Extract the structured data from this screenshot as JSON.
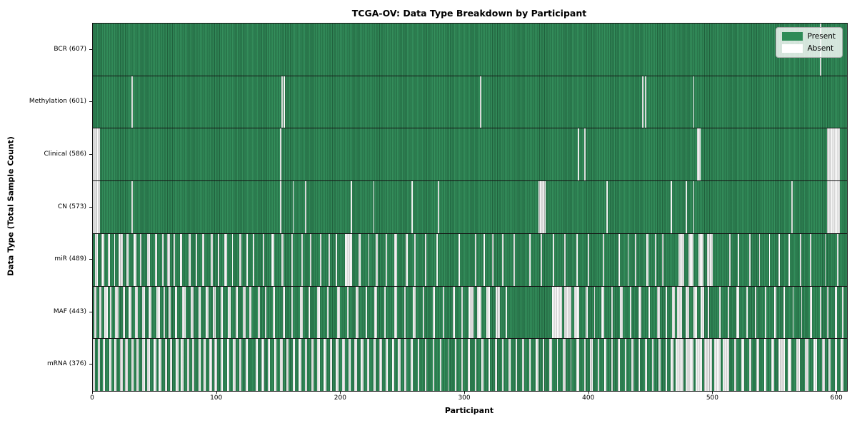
{
  "figure": {
    "title": "TCGA-OV: Data Type Breakdown by Participant",
    "xlabel": "Participant",
    "ylabel": "Data Type (Total Sample Count)"
  },
  "legend": {
    "present_label": "Present",
    "absent_label": "Absent"
  },
  "colors": {
    "present": "#2e8b57",
    "absent": "#ffffff",
    "bar_edge": "rgba(0,0,0,0.30)",
    "legend_bg": "rgba(255,255,255,0.8)",
    "legend_border": "#b0b0b0",
    "axis": "#141414"
  },
  "axis": {
    "x_ticks": [
      0,
      100,
      200,
      300,
      400,
      500,
      600
    ],
    "x_max": 608
  },
  "chart_data": {
    "type": "heatmap",
    "title": "TCGA-OV: Data Type Breakdown by Participant",
    "xlabel": "Participant",
    "ylabel": "Data Type (Total Sample Count)",
    "x_range": [
      0,
      608
    ],
    "legend": [
      "Present",
      "Absent"
    ],
    "legend_position": "upper right",
    "value_encoding": {
      "present": "#2e8b57",
      "absent": "#ffffff"
    },
    "total_participants": 608,
    "rows": [
      {
        "data_type": "BCR",
        "label": "BCR (607)",
        "present_count": 607,
        "absent_count": 1,
        "absent_intervals": [
          [
            586,
            587
          ]
        ]
      },
      {
        "data_type": "Methylation",
        "label": "Methylation (601)",
        "present_count": 601,
        "absent_count": 7,
        "absent_intervals": [
          [
            31,
            32
          ],
          [
            152,
            153
          ],
          [
            154,
            155
          ],
          [
            312,
            313
          ],
          [
            443,
            444
          ],
          [
            445,
            446
          ],
          [
            484,
            485
          ]
        ]
      },
      {
        "data_type": "Clinical",
        "label": "Clinical (586)",
        "present_count": 586,
        "absent_count": 22,
        "absent_intervals": [
          [
            0,
            6
          ],
          [
            151,
            152
          ],
          [
            391,
            392
          ],
          [
            396,
            397
          ],
          [
            487,
            490
          ],
          [
            592,
            602
          ]
        ]
      },
      {
        "data_type": "CN",
        "label": "CN (573)",
        "present_count": 573,
        "absent_count": 35,
        "absent_intervals": [
          [
            0,
            6
          ],
          [
            31,
            32
          ],
          [
            151,
            152
          ],
          [
            161,
            162
          ],
          [
            171,
            172
          ],
          [
            208,
            209
          ],
          [
            226,
            227
          ],
          [
            257,
            258
          ],
          [
            278,
            279
          ],
          [
            359,
            365
          ],
          [
            414,
            415
          ],
          [
            466,
            467
          ],
          [
            478,
            479
          ],
          [
            484,
            485
          ],
          [
            563,
            564
          ],
          [
            592,
            602
          ]
        ]
      },
      {
        "data_type": "miR",
        "label": "miR (489)",
        "present_count": 489,
        "absent_count": 119,
        "absent_intervals": [
          [
            2,
            4
          ],
          [
            7,
            9
          ],
          [
            12,
            14
          ],
          [
            17,
            18
          ],
          [
            21,
            24
          ],
          [
            27,
            29
          ],
          [
            33,
            35
          ],
          [
            38,
            39
          ],
          [
            44,
            46
          ],
          [
            50,
            52
          ],
          [
            56,
            57
          ],
          [
            60,
            62
          ],
          [
            65,
            66
          ],
          [
            70,
            72
          ],
          [
            77,
            79
          ],
          [
            83,
            84
          ],
          [
            88,
            90
          ],
          [
            95,
            97
          ],
          [
            101,
            102
          ],
          [
            106,
            108
          ],
          [
            112,
            113
          ],
          [
            118,
            120
          ],
          [
            124,
            125
          ],
          [
            129,
            130
          ],
          [
            137,
            138
          ],
          [
            144,
            146
          ],
          [
            152,
            154
          ],
          [
            160,
            161
          ],
          [
            168,
            169
          ],
          [
            175,
            176
          ],
          [
            183,
            184
          ],
          [
            190,
            191
          ],
          [
            196,
            197
          ],
          [
            203,
            209
          ],
          [
            214,
            216
          ],
          [
            222,
            223
          ],
          [
            228,
            230
          ],
          [
            236,
            237
          ],
          [
            243,
            245
          ],
          [
            252,
            254
          ],
          [
            259,
            260
          ],
          [
            268,
            269
          ],
          [
            277,
            278
          ],
          [
            295,
            296
          ],
          [
            308,
            309
          ],
          [
            315,
            316
          ],
          [
            322,
            323
          ],
          [
            330,
            331
          ],
          [
            339,
            340
          ],
          [
            352,
            353
          ],
          [
            361,
            362
          ],
          [
            371,
            372
          ],
          [
            380,
            381
          ],
          [
            390,
            391
          ],
          [
            399,
            400
          ],
          [
            411,
            412
          ],
          [
            424,
            425
          ],
          [
            431,
            432
          ],
          [
            437,
            438
          ],
          [
            446,
            448
          ],
          [
            453,
            454
          ],
          [
            459,
            460
          ],
          [
            472,
            477
          ],
          [
            480,
            484
          ],
          [
            488,
            492
          ],
          [
            495,
            500
          ],
          [
            513,
            514
          ],
          [
            520,
            521
          ],
          [
            529,
            530
          ],
          [
            537,
            538
          ],
          [
            545,
            546
          ],
          [
            553,
            554
          ],
          [
            561,
            562
          ],
          [
            570,
            571
          ],
          [
            578,
            579
          ],
          [
            590,
            591
          ],
          [
            600,
            601
          ]
        ]
      },
      {
        "data_type": "MAF",
        "label": "MAF (443)",
        "present_count": 443,
        "absent_count": 165,
        "absent_intervals": [
          [
            1,
            3
          ],
          [
            5,
            7
          ],
          [
            9,
            12
          ],
          [
            14,
            15
          ],
          [
            18,
            21
          ],
          [
            24,
            26
          ],
          [
            29,
            31
          ],
          [
            34,
            36
          ],
          [
            40,
            42
          ],
          [
            45,
            47
          ],
          [
            51,
            54
          ],
          [
            57,
            58
          ],
          [
            61,
            63
          ],
          [
            66,
            68
          ],
          [
            72,
            75
          ],
          [
            79,
            81
          ],
          [
            85,
            87
          ],
          [
            91,
            93
          ],
          [
            97,
            99
          ],
          [
            103,
            105
          ],
          [
            109,
            111
          ],
          [
            115,
            117
          ],
          [
            121,
            123
          ],
          [
            126,
            128
          ],
          [
            133,
            135
          ],
          [
            139,
            140
          ],
          [
            145,
            147
          ],
          [
            153,
            155
          ],
          [
            160,
            161
          ],
          [
            167,
            169
          ],
          [
            174,
            175
          ],
          [
            181,
            183
          ],
          [
            189,
            190
          ],
          [
            197,
            199
          ],
          [
            205,
            206
          ],
          [
            212,
            214
          ],
          [
            220,
            221
          ],
          [
            227,
            229
          ],
          [
            235,
            236
          ],
          [
            243,
            245
          ],
          [
            251,
            252
          ],
          [
            258,
            260
          ],
          [
            266,
            267
          ],
          [
            274,
            276
          ],
          [
            282,
            283
          ],
          [
            290,
            292
          ],
          [
            297,
            298
          ],
          [
            303,
            307
          ],
          [
            310,
            313
          ],
          [
            317,
            320
          ],
          [
            325,
            328
          ],
          [
            333,
            334
          ],
          [
            370,
            378
          ],
          [
            380,
            386
          ],
          [
            388,
            392
          ],
          [
            397,
            399
          ],
          [
            404,
            405
          ],
          [
            410,
            412
          ],
          [
            418,
            419
          ],
          [
            425,
            427
          ],
          [
            433,
            434
          ],
          [
            440,
            442
          ],
          [
            448,
            449
          ],
          [
            455,
            457
          ],
          [
            462,
            463
          ],
          [
            467,
            469
          ],
          [
            471,
            475
          ],
          [
            478,
            481
          ],
          [
            484,
            487
          ],
          [
            490,
            493
          ],
          [
            496,
            497
          ],
          [
            505,
            506
          ],
          [
            512,
            513
          ],
          [
            519,
            521
          ],
          [
            527,
            528
          ],
          [
            534,
            535
          ],
          [
            542,
            543
          ],
          [
            549,
            551
          ],
          [
            557,
            558
          ],
          [
            564,
            565
          ],
          [
            571,
            572
          ],
          [
            578,
            580
          ],
          [
            586,
            587
          ],
          [
            592,
            593
          ],
          [
            598,
            600
          ],
          [
            604,
            605
          ]
        ]
      },
      {
        "data_type": "mRNA",
        "label": "mRNA (376)",
        "present_count": 376,
        "absent_count": 232,
        "absent_intervals": [
          [
            0,
            2
          ],
          [
            4,
            6
          ],
          [
            8,
            10
          ],
          [
            13,
            15
          ],
          [
            17,
            19
          ],
          [
            22,
            24
          ],
          [
            26,
            28
          ],
          [
            31,
            33
          ],
          [
            35,
            37
          ],
          [
            40,
            42
          ],
          [
            44,
            46
          ],
          [
            49,
            51
          ],
          [
            53,
            55
          ],
          [
            58,
            60
          ],
          [
            62,
            64
          ],
          [
            67,
            69
          ],
          [
            71,
            73
          ],
          [
            76,
            78
          ],
          [
            80,
            82
          ],
          [
            85,
            87
          ],
          [
            89,
            91
          ],
          [
            94,
            96
          ],
          [
            98,
            100
          ],
          [
            103,
            105
          ],
          [
            108,
            110
          ],
          [
            113,
            115
          ],
          [
            118,
            120
          ],
          [
            123,
            125
          ],
          [
            131,
            133
          ],
          [
            136,
            138
          ],
          [
            141,
            143
          ],
          [
            146,
            148
          ],
          [
            151,
            153
          ],
          [
            156,
            158
          ],
          [
            161,
            163
          ],
          [
            166,
            168
          ],
          [
            171,
            173
          ],
          [
            176,
            178
          ],
          [
            181,
            183
          ],
          [
            186,
            188
          ],
          [
            191,
            193
          ],
          [
            196,
            198
          ],
          [
            201,
            203
          ],
          [
            206,
            208
          ],
          [
            211,
            213
          ],
          [
            216,
            218
          ],
          [
            221,
            223
          ],
          [
            226,
            228
          ],
          [
            231,
            233
          ],
          [
            236,
            238
          ],
          [
            241,
            243
          ],
          [
            246,
            248
          ],
          [
            251,
            253
          ],
          [
            256,
            258
          ],
          [
            262,
            263
          ],
          [
            268,
            269
          ],
          [
            274,
            275
          ],
          [
            280,
            281
          ],
          [
            286,
            287
          ],
          [
            292,
            293
          ],
          [
            297,
            298
          ],
          [
            302,
            304
          ],
          [
            308,
            309
          ],
          [
            313,
            315
          ],
          [
            319,
            320
          ],
          [
            324,
            326
          ],
          [
            330,
            331
          ],
          [
            335,
            337
          ],
          [
            341,
            342
          ],
          [
            346,
            348
          ],
          [
            352,
            353
          ],
          [
            357,
            359
          ],
          [
            363,
            364
          ],
          [
            368,
            370
          ],
          [
            374,
            375
          ],
          [
            379,
            381
          ],
          [
            385,
            386
          ],
          [
            390,
            392
          ],
          [
            396,
            397
          ],
          [
            401,
            403
          ],
          [
            407,
            408
          ],
          [
            412,
            414
          ],
          [
            418,
            419
          ],
          [
            423,
            425
          ],
          [
            429,
            430
          ],
          [
            434,
            436
          ],
          [
            440,
            441
          ],
          [
            445,
            447
          ],
          [
            451,
            452
          ],
          [
            456,
            458
          ],
          [
            462,
            463
          ],
          [
            466,
            468
          ],
          [
            470,
            476
          ],
          [
            478,
            484
          ],
          [
            486,
            491
          ],
          [
            493,
            499
          ],
          [
            501,
            506
          ],
          [
            508,
            513
          ],
          [
            517,
            519
          ],
          [
            523,
            525
          ],
          [
            529,
            531
          ],
          [
            535,
            537
          ],
          [
            541,
            543
          ],
          [
            547,
            549
          ],
          [
            553,
            558
          ],
          [
            560,
            563
          ],
          [
            567,
            570
          ],
          [
            574,
            577
          ],
          [
            581,
            584
          ],
          [
            588,
            590
          ],
          [
            593,
            595
          ],
          [
            598,
            600
          ],
          [
            603,
            605
          ]
        ]
      }
    ]
  }
}
